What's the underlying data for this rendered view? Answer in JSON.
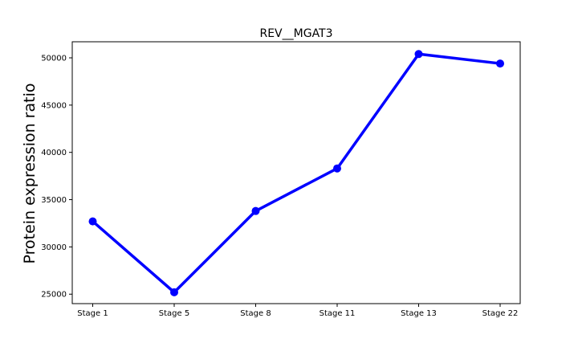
{
  "chart_data": {
    "type": "line",
    "title": "REV__MGAT3",
    "xlabel": "",
    "ylabel": "Protein expression ratio",
    "categories": [
      "Stage 1",
      "Stage 5",
      "Stage 8",
      "Stage 11",
      "Stage 13",
      "Stage 22"
    ],
    "series": [
      {
        "values": [
          32700,
          25200,
          33800,
          38300,
          50400,
          49400
        ]
      }
    ],
    "yticks": [
      25000,
      30000,
      35000,
      40000,
      45000,
      50000
    ],
    "ytick_labels": [
      "25000",
      "30000",
      "35000",
      "40000",
      "45000",
      "50000"
    ],
    "ylim": [
      24000,
      51700
    ],
    "grid": false,
    "line_color": "#0000ff",
    "marker": "circle"
  }
}
